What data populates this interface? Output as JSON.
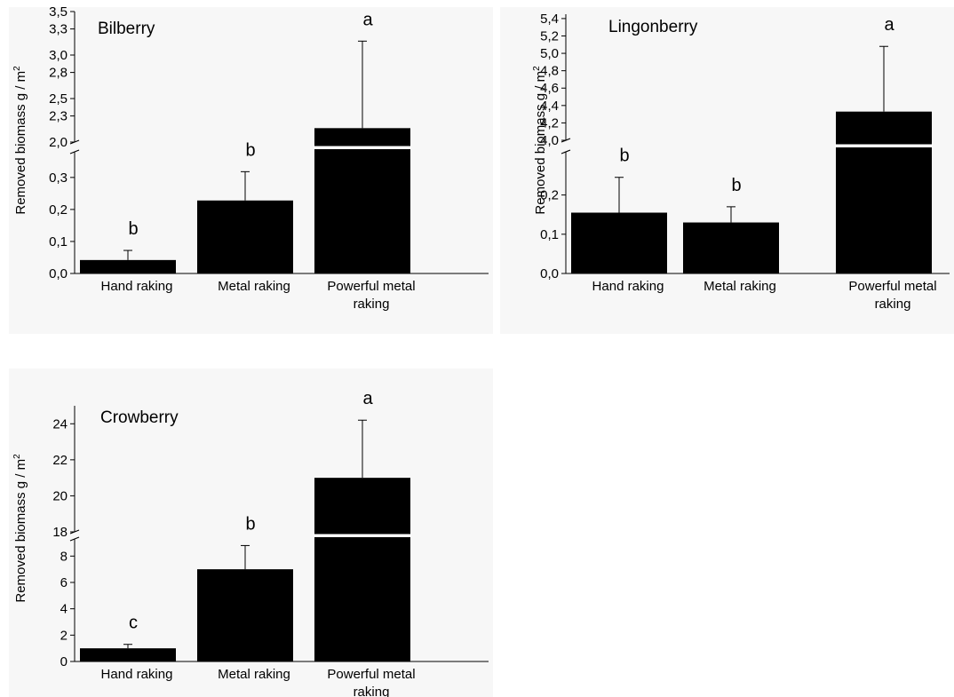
{
  "chart_data": [
    {
      "type": "bar",
      "title": "Bilberry",
      "ylabel": "Removed biomass g / m²",
      "ylabel_main": "Removed biomass g / m",
      "ylabel_sup": "2",
      "categories": [
        "Hand raking",
        "Metal raking",
        "Powerful metal raking"
      ],
      "category_lines": [
        [
          "Hand raking"
        ],
        [
          "Metal raking"
        ],
        [
          "Powerful metal",
          "raking"
        ]
      ],
      "values": [
        0.042,
        0.228,
        2.16
      ],
      "errors": [
        0.03,
        0.09,
        1.0
      ],
      "significance": [
        "b",
        "b",
        "a"
      ],
      "axis_break": true,
      "ylim_lower": [
        0.0,
        0.38
      ],
      "ylim_upper": [
        2.0,
        3.5
      ],
      "yticks_lower": [
        "0,0",
        "0,1",
        "0,2",
        "0,3"
      ],
      "yticks_upper": [
        "2,0",
        "2,3",
        "2,5",
        "2,8",
        "3,0",
        "3,3",
        "3,5"
      ],
      "bar_color": "#000000"
    },
    {
      "type": "bar",
      "title": "Lingonberry",
      "ylabel": "Removed biomass g / m²",
      "ylabel_main": "Removed biomass g / m",
      "ylabel_sup": "2",
      "categories": [
        "Hand raking",
        "Metal raking",
        "Powerful metal raking"
      ],
      "category_lines": [
        [
          "Hand raking"
        ],
        [
          "Metal raking"
        ],
        [
          "Powerful metal",
          "raking"
        ]
      ],
      "values": [
        0.155,
        0.13,
        4.33
      ],
      "errors": [
        0.09,
        0.04,
        0.75
      ],
      "significance": [
        "b",
        "b",
        "a"
      ],
      "axis_break": true,
      "ylim_lower": [
        0.0,
        0.31
      ],
      "ylim_upper": [
        4.0,
        5.45
      ],
      "yticks_lower": [
        "0,0",
        "0,1",
        "0,2"
      ],
      "yticks_upper": [
        "4,0",
        "4,2",
        "4,4",
        "4,6",
        "4,8",
        "5,0",
        "5,2",
        "5,4"
      ],
      "bar_color": "#000000"
    },
    {
      "type": "bar",
      "title": "Crowberry",
      "ylabel": "Removed biomass g / m²",
      "ylabel_main": "Removed biomass g / m",
      "ylabel_sup": "2",
      "categories": [
        "Hand raking",
        "Metal raking",
        "Powerful metal raking"
      ],
      "category_lines": [
        [
          "Hand raking"
        ],
        [
          "Metal raking"
        ],
        [
          "Powerful metal",
          "raking"
        ]
      ],
      "values": [
        1.0,
        7.0,
        21.0
      ],
      "errors": [
        0.3,
        1.8,
        3.2
      ],
      "significance": [
        "c",
        "b",
        "a"
      ],
      "axis_break": true,
      "ylim_lower": [
        0,
        9.3
      ],
      "ylim_upper": [
        18,
        25
      ],
      "yticks_lower": [
        "0",
        "2",
        "4",
        "6",
        "8"
      ],
      "yticks_upper": [
        "18",
        "20",
        "22",
        "24"
      ],
      "bar_color": "#000000"
    }
  ]
}
